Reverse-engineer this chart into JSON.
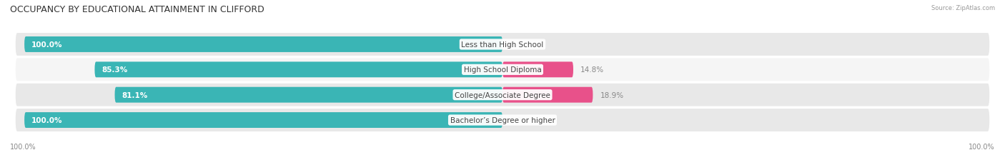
{
  "title": "OCCUPANCY BY EDUCATIONAL ATTAINMENT IN CLIFFORD",
  "source": "Source: ZipAtlas.com",
  "categories": [
    "Less than High School",
    "High School Diploma",
    "College/Associate Degree",
    "Bachelor’s Degree or higher"
  ],
  "owner_pct": [
    100.0,
    85.3,
    81.1,
    100.0
  ],
  "renter_pct": [
    0.0,
    14.8,
    18.9,
    0.0
  ],
  "owner_color": "#3ab5b5",
  "renter_color_high": "#e8518a",
  "renter_color_low": "#f4a8c4",
  "row_bg_even": "#e8e8e8",
  "row_bg_odd": "#f5f5f5",
  "title_fontsize": 9,
  "label_fontsize": 7.5,
  "value_fontsize": 7.5,
  "tick_fontsize": 7,
  "bar_height": 0.62,
  "figsize": [
    14.06,
    2.32
  ],
  "dpi": 100,
  "total_width": 100
}
